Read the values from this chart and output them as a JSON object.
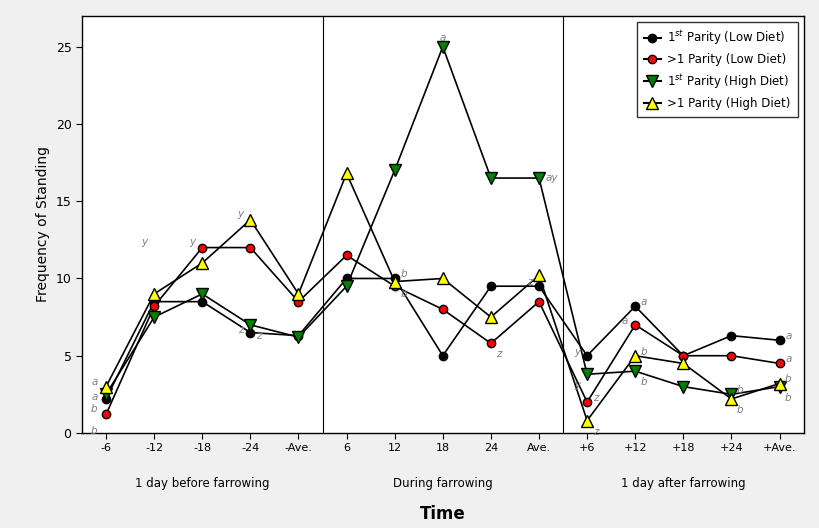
{
  "x_labels": [
    "-6",
    "-12",
    "-18",
    "-24",
    "-Ave.",
    "6",
    "12",
    "18",
    "24",
    "Ave.",
    "+6",
    "+12",
    "+18",
    "+24",
    "+Ave."
  ],
  "x_positions": [
    0,
    1,
    2,
    3,
    4,
    5,
    6,
    7,
    8,
    9,
    10,
    11,
    12,
    13,
    14
  ],
  "series": {
    "1st_low": {
      "values": [
        2.2,
        8.5,
        8.5,
        6.5,
        6.3,
        10.0,
        10.0,
        5.0,
        9.5,
        9.5,
        5.0,
        8.2,
        5.0,
        6.3,
        6.0
      ]
    },
    "g1_low": {
      "values": [
        1.2,
        8.2,
        12.0,
        12.0,
        8.5,
        11.5,
        9.5,
        8.0,
        5.8,
        8.5,
        2.0,
        7.0,
        5.0,
        5.0,
        4.5
      ]
    },
    "1st_high": {
      "values": [
        2.5,
        7.5,
        9.0,
        7.0,
        6.2,
        9.5,
        17.0,
        25.0,
        16.5,
        16.5,
        3.8,
        4.0,
        3.0,
        2.5,
        3.0
      ]
    },
    "g1_high": {
      "values": [
        3.0,
        9.0,
        11.0,
        13.8,
        9.0,
        16.8,
        9.8,
        10.0,
        7.5,
        10.2,
        0.8,
        5.0,
        4.5,
        2.2,
        3.2
      ]
    }
  },
  "xlabel": "Time",
  "ylabel": "Frequency of Standing",
  "ylim": [
    0,
    27
  ],
  "yticks": [
    0,
    5,
    10,
    15,
    20,
    25
  ],
  "dividers": [
    4.5,
    9.5
  ],
  "background_color": "#f0f0f0",
  "plot_bg": "white"
}
